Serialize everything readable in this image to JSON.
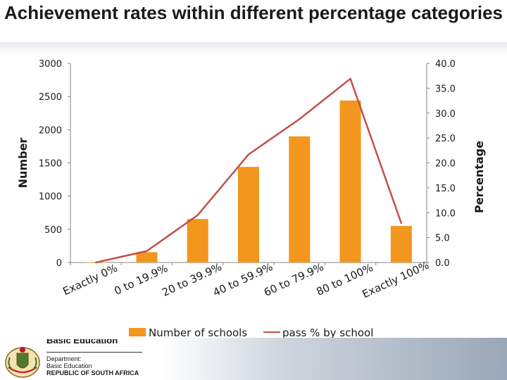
{
  "page": {
    "title": "Achievement rates within different percentage categories"
  },
  "footer": {
    "partial_heading": "Basic Education",
    "line1": "Department:",
    "line2": "Basic Education",
    "line3": "REPUBLIC OF SOUTH AFRICA",
    "crest_icon": "coat-of-arms-icon"
  },
  "colors": {
    "bars": "#f2961d",
    "line": "#c0504d",
    "axis": "#868686",
    "text": "#1a1a1a"
  },
  "chart_data": {
    "type": "bar",
    "title": "",
    "categories": [
      "Exactly 0%",
      "0 to 19.9%",
      "20 to 39.9%",
      "40 to 59.9%",
      "60 to 79.9%",
      "80 to 100%",
      "Exactly 100%"
    ],
    "ylabel": "Number",
    "y2label": "Percentage",
    "ylim": [
      0,
      3000
    ],
    "y_ticks": [
      "0",
      "500",
      "1000",
      "1500",
      "2000",
      "2500",
      "3000"
    ],
    "y2lim": [
      0,
      40
    ],
    "y2_ticks": [
      "0.0",
      "5.0",
      "10.0",
      "15.0",
      "20.0",
      "25.0",
      "30.0",
      "35.0",
      "40.0"
    ],
    "legend_position": "bottom",
    "grid": false,
    "series": [
      {
        "name": "Number of schools",
        "type": "bar",
        "axis": "left",
        "values": [
          5,
          155,
          655,
          1440,
          1900,
          2440,
          550
        ]
      },
      {
        "name": "pass % by school",
        "type": "line",
        "axis": "right",
        "values": [
          0.0,
          2.3,
          9.5,
          21.7,
          28.8,
          36.9,
          7.9
        ]
      }
    ]
  }
}
